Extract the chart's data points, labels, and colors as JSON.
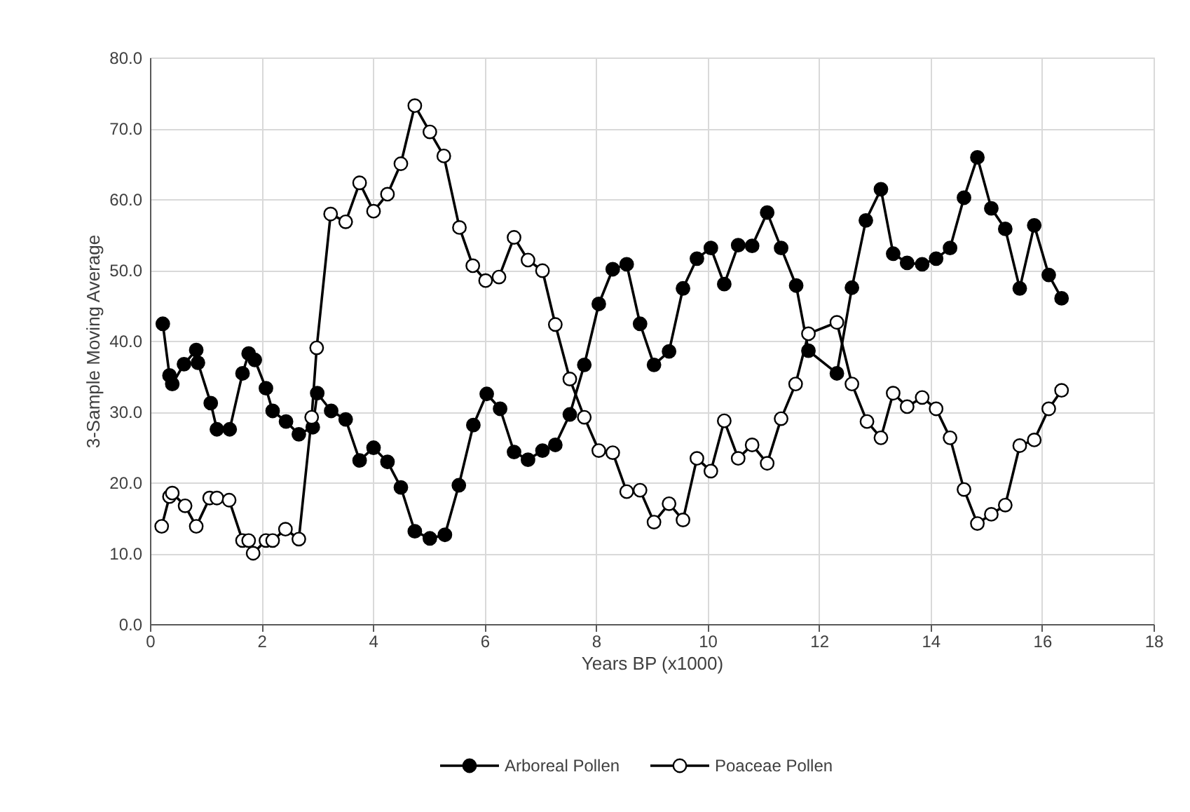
{
  "chart_data": {
    "type": "line",
    "xlabel": "Years BP (x1000)",
    "ylabel": "3-Sample Moving Average",
    "xlim": [
      0,
      18
    ],
    "xticks": [
      0,
      2,
      4,
      6,
      8,
      10,
      12,
      14,
      16,
      18
    ],
    "ylim": [
      0,
      80
    ],
    "yticks": [
      {
        "value": 0,
        "label": "0.0"
      },
      {
        "value": 10,
        "label": "10.0"
      },
      {
        "value": 20,
        "label": "20.0"
      },
      {
        "value": 30,
        "label": "30.0"
      },
      {
        "value": 40,
        "label": "40.0"
      },
      {
        "value": 50,
        "label": "50.0"
      },
      {
        "value": 60,
        "label": "60.0"
      },
      {
        "value": 70,
        "label": "70.0"
      },
      {
        "value": 80,
        "label": "80.0"
      }
    ],
    "grid": true,
    "legend": "bottom",
    "marker": "circle",
    "line_style": "solid",
    "series": [
      {
        "name": "Arboreal Pollen",
        "color": "#000000",
        "x": [
          0.23,
          0.35,
          0.4,
          0.61,
          0.83,
          0.86,
          1.09,
          1.2,
          1.43,
          1.66,
          1.77,
          1.88,
          2.08,
          2.2,
          2.44,
          2.67,
          2.92,
          3.0,
          3.25,
          3.51,
          3.76,
          4.01,
          4.26,
          4.5,
          4.75,
          5.02,
          5.29,
          5.54,
          5.8,
          6.04,
          6.28,
          6.53,
          6.78,
          7.04,
          7.27,
          7.53,
          7.79,
          8.05,
          8.3,
          8.55,
          8.79,
          9.04,
          9.31,
          9.56,
          9.81,
          10.06,
          10.3,
          10.55,
          10.8,
          11.07,
          11.32,
          11.59,
          11.81,
          12.32,
          12.59,
          12.84,
          13.11,
          13.33,
          13.58,
          13.85,
          14.1,
          14.35,
          14.6,
          14.84,
          15.09,
          15.34,
          15.6,
          15.86,
          16.12,
          16.35
        ],
        "values": [
          42.4,
          35.1,
          33.9,
          36.7,
          38.7,
          36.9,
          31.2,
          27.5,
          27.5,
          35.4,
          38.2,
          37.3,
          33.3,
          30.1,
          28.6,
          26.8,
          27.8,
          32.6,
          30.1,
          28.9,
          23.1,
          24.9,
          22.9,
          19.3,
          13.1,
          12.1,
          12.6,
          19.6,
          28.1,
          32.5,
          30.4,
          24.3,
          23.2,
          24.5,
          25.3,
          29.6,
          36.6,
          45.2,
          50.1,
          50.8,
          42.4,
          36.6,
          38.5,
          47.4,
          51.6,
          53.1,
          48.0,
          53.5,
          53.4,
          58.1,
          53.1,
          47.8,
          38.6,
          35.4,
          47.5,
          57.0,
          61.4,
          52.3,
          51.0,
          50.8,
          51.6,
          53.1,
          60.2,
          65.9,
          58.7,
          55.8,
          47.4,
          56.3,
          49.3,
          46.0
        ]
      },
      {
        "name": "Poaceae Pollen",
        "color": "#000000",
        "x": [
          0.21,
          0.35,
          0.4,
          0.63,
          0.83,
          1.07,
          1.2,
          1.42,
          1.66,
          1.77,
          1.85,
          2.08,
          2.2,
          2.43,
          2.67,
          2.9,
          2.99,
          3.24,
          3.51,
          3.76,
          4.01,
          4.26,
          4.5,
          4.75,
          5.02,
          5.27,
          5.55,
          5.79,
          6.02,
          6.26,
          6.53,
          6.78,
          7.04,
          7.27,
          7.53,
          7.79,
          8.05,
          8.3,
          8.55,
          8.79,
          9.04,
          9.31,
          9.56,
          9.81,
          10.06,
          10.3,
          10.55,
          10.8,
          11.07,
          11.32,
          11.58,
          11.81,
          12.32,
          12.59,
          12.86,
          13.11,
          13.33,
          13.58,
          13.85,
          14.1,
          14.35,
          14.6,
          14.84,
          15.09,
          15.34,
          15.6,
          15.86,
          16.12,
          16.35
        ],
        "values": [
          13.8,
          18.0,
          18.5,
          16.7,
          13.8,
          17.8,
          17.8,
          17.5,
          11.8,
          11.8,
          10.0,
          11.8,
          11.8,
          13.4,
          12.0,
          29.2,
          39.0,
          57.9,
          56.8,
          62.3,
          58.3,
          60.7,
          65.0,
          73.2,
          69.5,
          66.1,
          56.0,
          50.6,
          48.5,
          49.0,
          54.6,
          51.4,
          49.9,
          42.3,
          34.6,
          29.2,
          24.5,
          24.2,
          18.7,
          18.9,
          14.4,
          17.0,
          14.7,
          23.4,
          21.6,
          28.7,
          23.4,
          25.3,
          22.7,
          29.0,
          33.9,
          41.0,
          42.6,
          33.9,
          28.6,
          26.3,
          32.6,
          30.7,
          32.0,
          30.4,
          26.3,
          19.0,
          14.2,
          15.5,
          16.8,
          25.2,
          26.0,
          30.4,
          33.0
        ]
      }
    ]
  }
}
